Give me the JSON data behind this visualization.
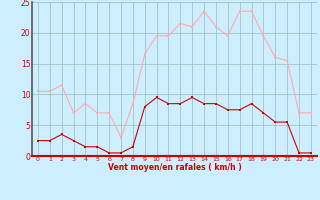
{
  "x": [
    0,
    1,
    2,
    3,
    4,
    5,
    6,
    7,
    8,
    9,
    10,
    11,
    12,
    13,
    14,
    15,
    16,
    17,
    18,
    19,
    20,
    21,
    22,
    23
  ],
  "wind_avg": [
    2.5,
    2.5,
    3.5,
    2.5,
    1.5,
    1.5,
    0.5,
    0.5,
    1.5,
    8.0,
    9.5,
    8.5,
    8.5,
    9.5,
    8.5,
    8.5,
    7.5,
    7.5,
    8.5,
    7.0,
    5.5,
    5.5,
    0.5,
    0.5
  ],
  "wind_gust": [
    10.5,
    10.5,
    11.5,
    7.0,
    8.5,
    7.0,
    7.0,
    3.0,
    8.5,
    16.5,
    19.5,
    19.5,
    21.5,
    21.0,
    23.5,
    21.0,
    19.5,
    23.5,
    23.5,
    19.5,
    16.0,
    15.5,
    7.0,
    7.0
  ],
  "color_avg": "#cc0000",
  "color_gust": "#ffaaaa",
  "bg_color": "#cceeff",
  "grid_color": "#99bbbb",
  "xlabel": "Vent moyen/en rafales ( km/h )",
  "xlabel_color": "#cc0000",
  "tick_color": "#cc0000",
  "spine_color": "#888888",
  "ylim": [
    0,
    25
  ],
  "yticks": [
    0,
    5,
    10,
    15,
    20,
    25
  ],
  "xlim": [
    -0.5,
    23.5
  ],
  "marker": "s",
  "markersize": 2.0,
  "linewidth": 0.8
}
